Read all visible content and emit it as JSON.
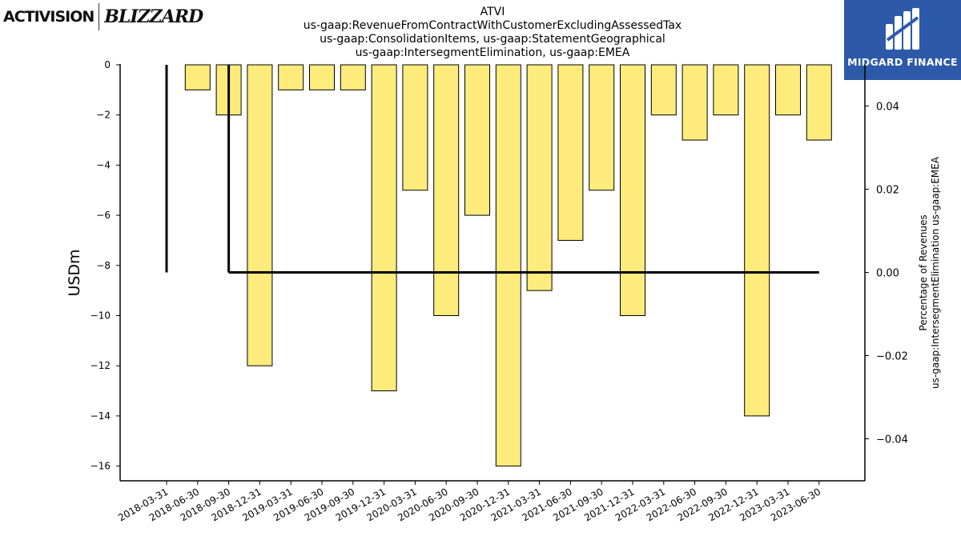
{
  "title_lines": [
    "ATVI",
    "us-gaap:RevenueFromContractWithCustomerExcludingAssessedTax",
    "us-gaap:ConsolidationItems, us-gaap:StatementGeographical",
    "us-gaap:IntersegmentElimination, us-gaap:EMEA"
  ],
  "logos": {
    "left_primary": "ACTIVISION",
    "left_secondary": "BLIZZARD",
    "right_name": "MIDGARD FINANCE"
  },
  "colors": {
    "bar_fill": "#fdeb7c",
    "bar_stroke": "#000000",
    "line": "#000000",
    "brand_blue": "#2d5aa8"
  },
  "chart_data": {
    "type": "bar",
    "categories": [
      "2018-03-31",
      "2018-06-30",
      "2018-09-30",
      "2018-12-31",
      "2019-03-31",
      "2019-06-30",
      "2019-09-30",
      "2019-12-31",
      "2020-03-31",
      "2020-06-30",
      "2020-09-30",
      "2020-12-31",
      "2021-03-31",
      "2021-06-30",
      "2021-09-30",
      "2021-12-31",
      "2022-03-31",
      "2022-06-30",
      "2022-09-30",
      "2022-12-31",
      "2023-03-31",
      "2023-06-30"
    ],
    "values": [
      null,
      -1,
      -2,
      -12,
      -1,
      -1,
      -1,
      -13,
      -5,
      -10,
      -6,
      -16,
      -9,
      -7,
      -5,
      -10,
      -2,
      -3,
      -2,
      -14,
      -2,
      -3
    ],
    "ylabel": "USDm",
    "ylim": [
      -16.6,
      0
    ],
    "yticks": [
      0,
      -2,
      -4,
      -6,
      -8,
      -10,
      -12,
      -14,
      -16
    ],
    "ytick_labels": [
      "0",
      "−2",
      "−4",
      "−6",
      "−8",
      "−10",
      "−12",
      "−14",
      "−16"
    ],
    "secondary_axis": {
      "ylabel": "Percentage of Revenues\nus-gaap:IntersegmentElimination us-gaap:EMEA",
      "ylim": [
        -0.05,
        0.0515
      ],
      "yticks": [
        0.04,
        0.02,
        0.0,
        -0.02,
        -0.04
      ],
      "ytick_labels": [
        "0.04",
        "0.02",
        "0.00",
        "−0.02",
        "−0.04"
      ],
      "series": {
        "type": "step",
        "x_start": "2018-03-31",
        "x_end": "2023-06-30",
        "values": [
          {
            "x": "2018-03-31",
            "y": 0.0
          },
          {
            "x": "2018-09-30",
            "y": 0.0
          },
          {
            "x": "2023-06-30",
            "y": 0.0
          }
        ]
      }
    },
    "grid": false,
    "legend": "none"
  }
}
